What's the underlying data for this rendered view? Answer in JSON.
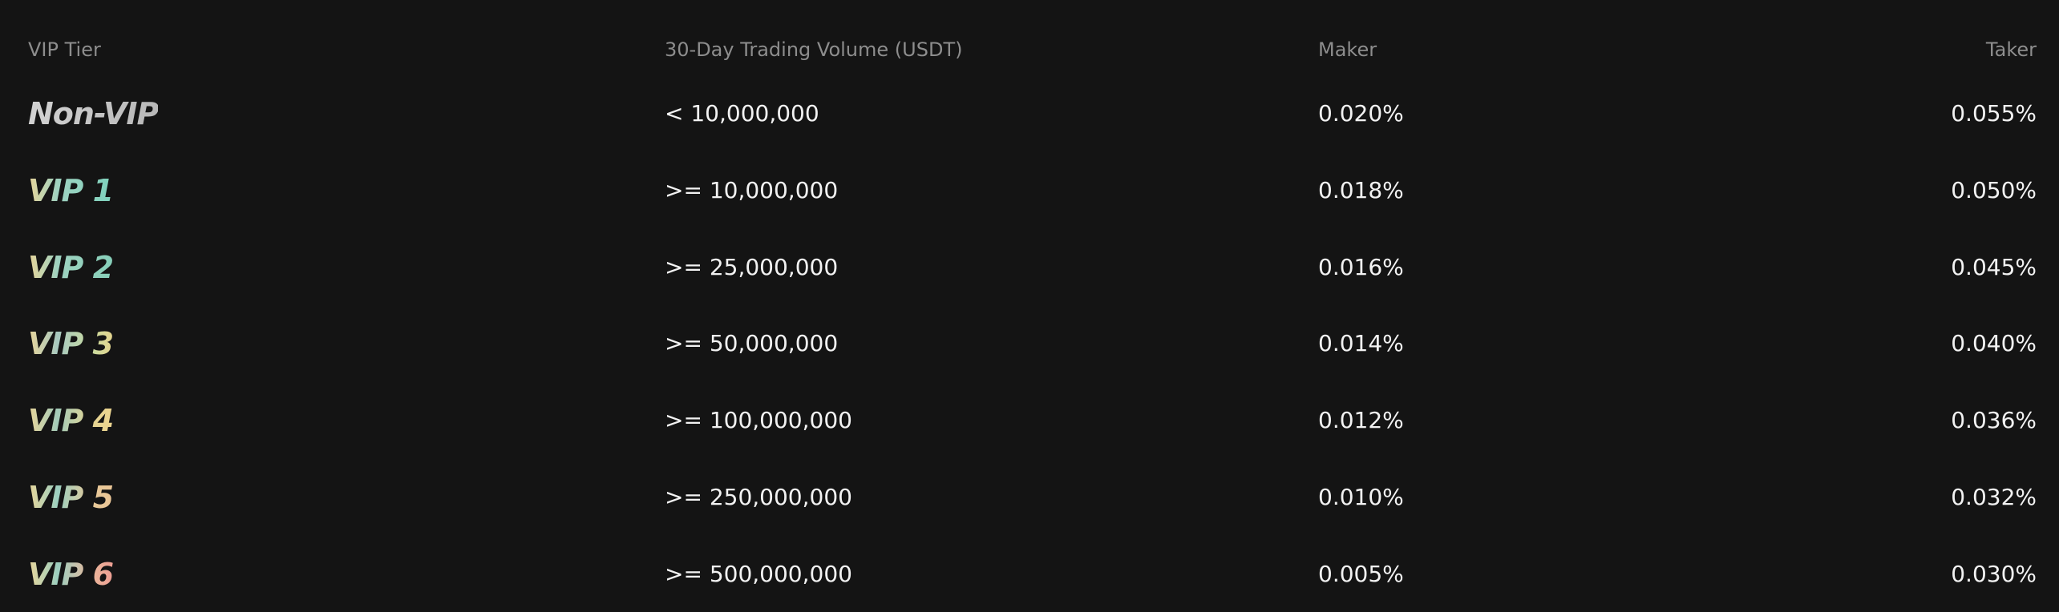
{
  "fee_table": {
    "headers": {
      "tier": "VIP Tier",
      "volume": "30-Day Trading Volume (USDT)",
      "maker": "Maker",
      "taker": "Taker"
    },
    "rows": [
      {
        "tier": "Non-VIP",
        "volume": "< 10,000,000",
        "maker": "0.020%",
        "taker": "0.055%"
      },
      {
        "tier": "VIP 1",
        "volume": ">= 10,000,000",
        "maker": "0.018%",
        "taker": "0.050%"
      },
      {
        "tier": "VIP 2",
        "volume": ">= 25,000,000",
        "maker": "0.016%",
        "taker": "0.045%"
      },
      {
        "tier": "VIP 3",
        "volume": ">= 50,000,000",
        "maker": "0.014%",
        "taker": "0.040%"
      },
      {
        "tier": "VIP 4",
        "volume": ">= 100,000,000",
        "maker": "0.012%",
        "taker": "0.036%"
      },
      {
        "tier": "VIP 5",
        "volume": ">= 250,000,000",
        "maker": "0.010%",
        "taker": "0.032%"
      },
      {
        "tier": "VIP 6",
        "volume": ">= 500,000,000",
        "maker": "0.005%",
        "taker": "0.030%"
      }
    ]
  },
  "colors": {
    "background": "#141414",
    "header_text": "#8d8d8d",
    "cell_text": "#f2f2f2"
  }
}
